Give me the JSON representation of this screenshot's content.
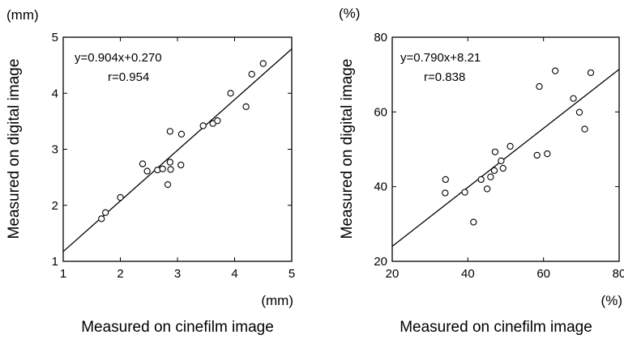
{
  "chart_data": [
    {
      "type": "scatter",
      "unit_label_y": "(mm)",
      "unit_label_x": "(mm)",
      "ylabel": "Measured on digital image",
      "xlabel": "Measured on cinefilm image",
      "xlim": [
        1,
        5
      ],
      "ylim": [
        1,
        5
      ],
      "x_ticks": [
        "1",
        "2",
        "3",
        "4",
        "5"
      ],
      "y_ticks": [
        "1",
        "2",
        "3",
        "4",
        "5"
      ],
      "annotation_eq": "y=0.904x+0.270",
      "annotation_r": "r=0.954",
      "fit": {
        "slope": 0.904,
        "intercept": 0.27
      },
      "points": [
        {
          "x": 1.67,
          "y": 1.76
        },
        {
          "x": 1.74,
          "y": 1.87
        },
        {
          "x": 2.0,
          "y": 2.14
        },
        {
          "x": 2.39,
          "y": 2.74
        },
        {
          "x": 2.47,
          "y": 2.61
        },
        {
          "x": 2.65,
          "y": 2.63
        },
        {
          "x": 2.74,
          "y": 2.65
        },
        {
          "x": 2.83,
          "y": 2.37
        },
        {
          "x": 2.87,
          "y": 2.77
        },
        {
          "x": 2.88,
          "y": 2.64
        },
        {
          "x": 2.87,
          "y": 3.32
        },
        {
          "x": 3.06,
          "y": 2.72
        },
        {
          "x": 3.07,
          "y": 3.27
        },
        {
          "x": 3.45,
          "y": 3.42
        },
        {
          "x": 3.62,
          "y": 3.46
        },
        {
          "x": 3.7,
          "y": 3.51
        },
        {
          "x": 3.93,
          "y": 4.0
        },
        {
          "x": 4.2,
          "y": 3.76
        },
        {
          "x": 4.3,
          "y": 4.34
        },
        {
          "x": 4.5,
          "y": 4.53
        }
      ]
    },
    {
      "type": "scatter",
      "unit_label_y": "(%)",
      "unit_label_x": "(%)",
      "ylabel": "Measured on digital image",
      "xlabel": "Measured on cinefilm image",
      "xlim": [
        20,
        80
      ],
      "ylim": [
        20,
        80
      ],
      "x_ticks": [
        "20",
        "40",
        "60",
        "80"
      ],
      "y_ticks": [
        "20",
        "40",
        "60",
        "80"
      ],
      "annotation_eq": "y=0.790x+8.21",
      "annotation_r": "r=0.838",
      "fit": {
        "slope": 0.79,
        "intercept": 8.21
      },
      "points": [
        {
          "x": 34.0,
          "y": 38.3
        },
        {
          "x": 34.1,
          "y": 41.9
        },
        {
          "x": 39.2,
          "y": 38.5
        },
        {
          "x": 41.5,
          "y": 30.5
        },
        {
          "x": 43.5,
          "y": 41.9
        },
        {
          "x": 45.1,
          "y": 39.4
        },
        {
          "x": 46.0,
          "y": 42.6
        },
        {
          "x": 47.0,
          "y": 44.3
        },
        {
          "x": 47.2,
          "y": 49.3
        },
        {
          "x": 48.8,
          "y": 46.9
        },
        {
          "x": 49.3,
          "y": 44.9
        },
        {
          "x": 51.2,
          "y": 50.8
        },
        {
          "x": 58.3,
          "y": 48.4
        },
        {
          "x": 58.9,
          "y": 66.8
        },
        {
          "x": 61.0,
          "y": 48.8
        },
        {
          "x": 63.1,
          "y": 71.0
        },
        {
          "x": 67.9,
          "y": 63.6
        },
        {
          "x": 69.5,
          "y": 59.9
        },
        {
          "x": 70.9,
          "y": 55.4
        },
        {
          "x": 72.5,
          "y": 70.5
        }
      ]
    }
  ]
}
